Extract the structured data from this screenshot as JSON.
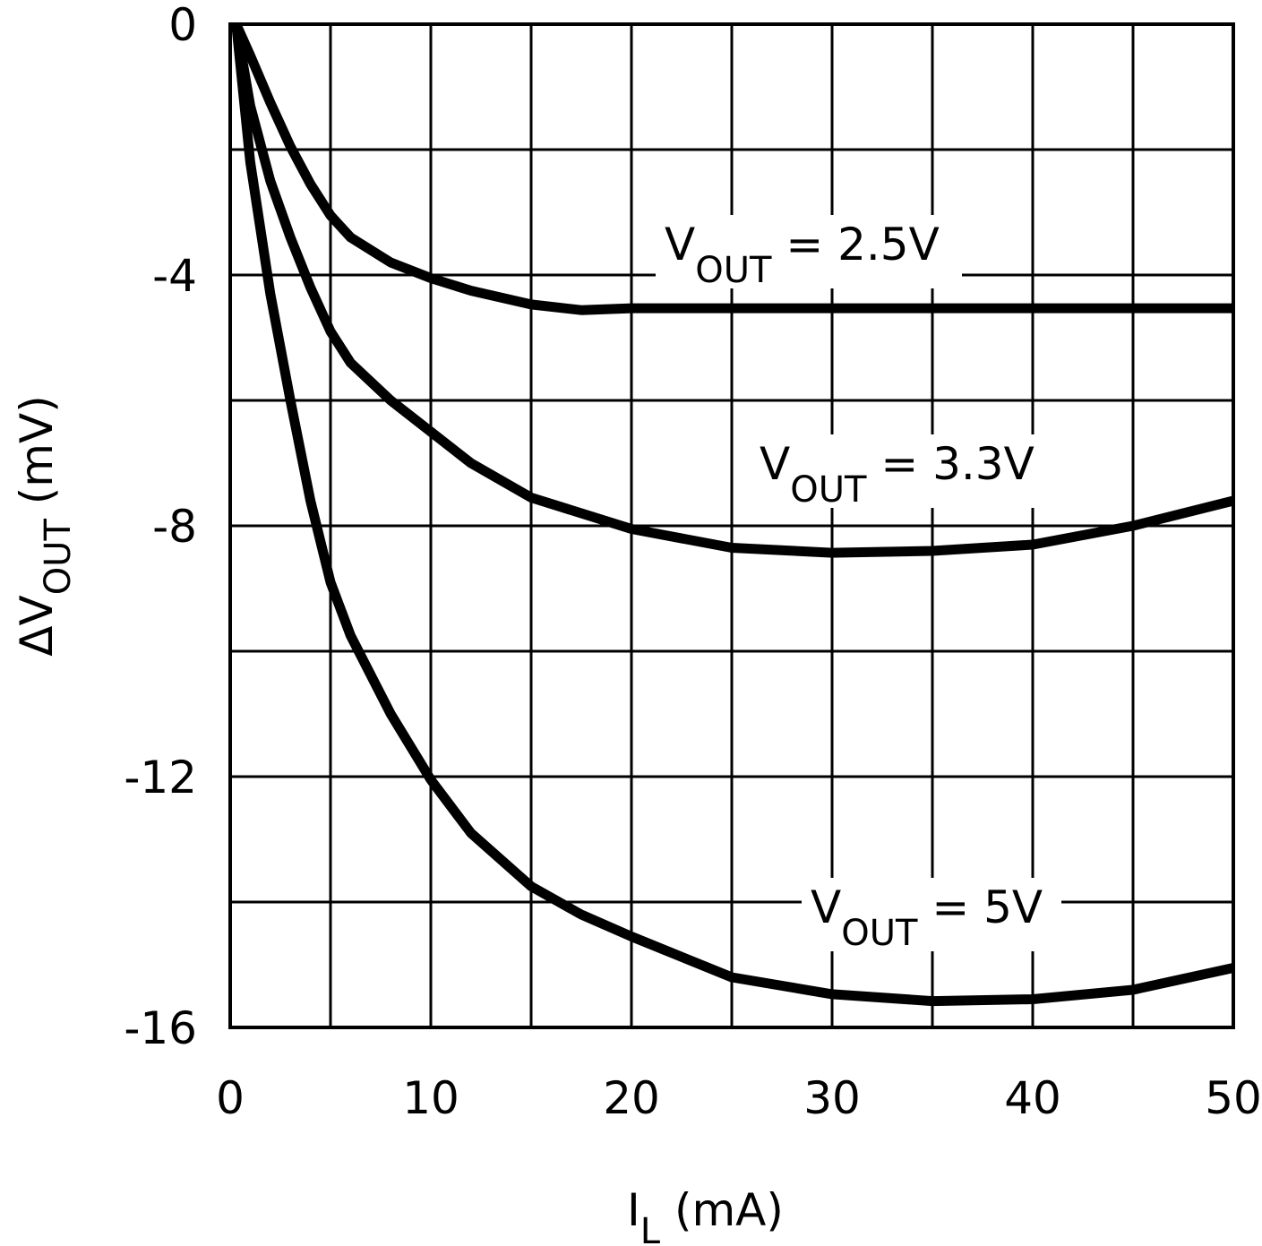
{
  "chart_data": {
    "type": "line",
    "x_label": {
      "main": "I",
      "sub": "L",
      "rest": " (mA)"
    },
    "y_label": {
      "main": "ΔV",
      "sub": "OUT",
      "rest": " (mV)"
    },
    "xlim": [
      0,
      50
    ],
    "ylim": [
      -16,
      0
    ],
    "xticks": [
      0,
      10,
      20,
      30,
      40,
      50
    ],
    "yticks": [
      0,
      -4,
      -8,
      -12,
      -16
    ],
    "x_gridlines": [
      0,
      5,
      10,
      15,
      20,
      25,
      30,
      35,
      40,
      45,
      50
    ],
    "y_gridlines": [
      0,
      -2,
      -4,
      -6,
      -8,
      -10,
      -12,
      -14,
      -16
    ],
    "grid": true,
    "x": [
      0.3,
      1,
      2,
      3,
      4,
      5,
      6,
      8,
      10,
      12,
      15,
      17.5,
      20,
      25,
      30,
      35,
      40,
      45,
      50
    ],
    "series": [
      {
        "label": {
          "main": "V",
          "sub": "OUT",
          "rest": " = 2.5V"
        },
        "color": "#000000",
        "values": [
          0,
          -0.5,
          -1.25,
          -1.95,
          -2.55,
          -3.05,
          -3.4,
          -3.8,
          -4.05,
          -4.25,
          -4.47,
          -4.56,
          -4.53,
          -4.53,
          -4.53,
          -4.53,
          -4.53,
          -4.53,
          -4.53
        ]
      },
      {
        "label": {
          "main": "V",
          "sub": "OUT",
          "rest": " = 3.3V"
        },
        "color": "#000000",
        "values": [
          0,
          -1.3,
          -2.5,
          -3.4,
          -4.2,
          -4.9,
          -5.4,
          -6.0,
          -6.5,
          -7.0,
          -7.55,
          -7.8,
          -8.05,
          -8.35,
          -8.43,
          -8.4,
          -8.3,
          -8.0,
          -7.6
        ]
      },
      {
        "label": {
          "main": "V",
          "sub": "OUT",
          "rest": " = 5V"
        },
        "color": "#000000",
        "values": [
          0,
          -2.2,
          -4.3,
          -6.0,
          -7.6,
          -8.9,
          -9.75,
          -11.0,
          -12.05,
          -12.9,
          -13.75,
          -14.2,
          -14.55,
          -15.2,
          -15.47,
          -15.58,
          -15.55,
          -15.4,
          -15.05
        ]
      }
    ]
  }
}
